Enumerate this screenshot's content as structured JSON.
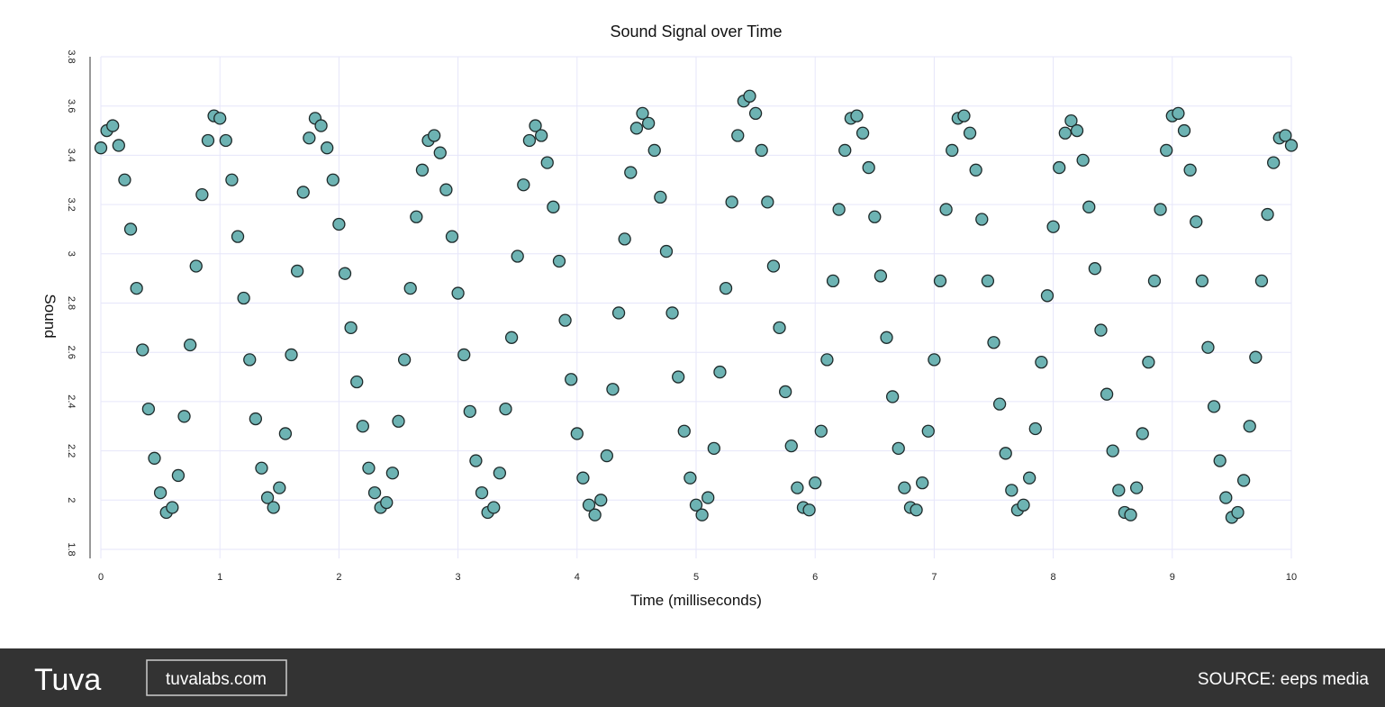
{
  "chart_data": {
    "type": "scatter",
    "title": "Sound Signal over Time",
    "x_label": "Time (milliseconds)",
    "y_label": "Sound",
    "color": "#6db3b3",
    "grid": true,
    "xlim": [
      0,
      10
    ],
    "xticks": [
      0,
      1,
      2,
      3,
      4,
      5,
      6,
      7,
      8,
      9,
      10
    ],
    "ylim": [
      1.8,
      3.8
    ],
    "yticks": [
      1.8,
      2,
      2.2,
      2.4,
      2.6,
      2.8,
      3,
      3.2,
      3.4,
      3.6,
      3.8
    ],
    "x": [
      0,
      0.05,
      0.1,
      0.15,
      0.2,
      0.25,
      0.3,
      0.35,
      0.4,
      0.45,
      0.5,
      0.55,
      0.6,
      0.65,
      0.7,
      0.75,
      0.8,
      0.85,
      0.9,
      0.95,
      1,
      1.05,
      1.1,
      1.15,
      1.2,
      1.25,
      1.3,
      1.35,
      1.4,
      1.45,
      1.5,
      1.55,
      1.6,
      1.65,
      1.7,
      1.75,
      1.8,
      1.85,
      1.9,
      1.95,
      2,
      2.05,
      2.1,
      2.15,
      2.2,
      2.25,
      2.3,
      2.35,
      2.4,
      2.45,
      2.5,
      2.55,
      2.6,
      2.65,
      2.7,
      2.75,
      2.8,
      2.85,
      2.9,
      2.95,
      3,
      3.05,
      3.1,
      3.15,
      3.2,
      3.25,
      3.3,
      3.35,
      3.4,
      3.45,
      3.5,
      3.55,
      3.6,
      3.65,
      3.7,
      3.75,
      3.8,
      3.85,
      3.9,
      3.95,
      4,
      4.05,
      4.1,
      4.15,
      4.2,
      4.25,
      4.3,
      4.35,
      4.4,
      4.45,
      4.5,
      4.55,
      4.6,
      4.65,
      4.7,
      4.75,
      4.8,
      4.85,
      4.9,
      4.95,
      5,
      5.05,
      5.1,
      5.15,
      5.2,
      5.25,
      5.3,
      5.35,
      5.4,
      5.45,
      5.5,
      5.55,
      5.6,
      5.65,
      5.7,
      5.75,
      5.8,
      5.85,
      5.9,
      5.95,
      6,
      6.05,
      6.1,
      6.15,
      6.2,
      6.25,
      6.3,
      6.35,
      6.4,
      6.45,
      6.5,
      6.55,
      6.6,
      6.65,
      6.7,
      6.75,
      6.8,
      6.85,
      6.9,
      6.95,
      7,
      7.05,
      7.1,
      7.15,
      7.2,
      7.25,
      7.3,
      7.35,
      7.4,
      7.45,
      7.5,
      7.55,
      7.6,
      7.65,
      7.7,
      7.75,
      7.8,
      7.85,
      7.9,
      7.95,
      8,
      8.05,
      8.1,
      8.15,
      8.2,
      8.25,
      8.3,
      8.35,
      8.4,
      8.45,
      8.5,
      8.55,
      8.6,
      8.65,
      8.7,
      8.75,
      8.8,
      8.85,
      8.9,
      8.95,
      9,
      9.05,
      9.1,
      9.15,
      9.2,
      9.25,
      9.3,
      9.35,
      9.4,
      9.45,
      9.5,
      9.55,
      9.6,
      9.65,
      9.7,
      9.75,
      9.8,
      9.85,
      9.9,
      9.95,
      10
    ],
    "values": [
      3.43,
      3.5,
      3.52,
      3.44,
      3.3,
      3.1,
      2.86,
      2.61,
      2.37,
      2.17,
      2.03,
      1.95,
      1.97,
      2.1,
      2.34,
      2.63,
      2.95,
      3.24,
      3.46,
      3.56,
      3.55,
      3.46,
      3.3,
      3.07,
      2.82,
      2.57,
      2.33,
      2.13,
      2.01,
      1.97,
      2.05,
      2.27,
      2.59,
      2.93,
      3.25,
      3.47,
      3.55,
      3.52,
      3.43,
      3.3,
      3.12,
      2.92,
      2.7,
      2.48,
      2.3,
      2.13,
      2.03,
      1.97,
      1.99,
      2.11,
      2.32,
      2.57,
      2.86,
      3.15,
      3.34,
      3.46,
      3.48,
      3.41,
      3.26,
      3.07,
      2.84,
      2.59,
      2.36,
      2.16,
      2.03,
      1.95,
      1.97,
      2.11,
      2.37,
      2.66,
      2.99,
      3.28,
      3.46,
      3.52,
      3.48,
      3.37,
      3.19,
      2.97,
      2.73,
      2.49,
      2.27,
      2.09,
      1.98,
      1.94,
      2,
      2.18,
      2.45,
      2.76,
      3.06,
      3.33,
      3.51,
      3.57,
      3.53,
      3.42,
      3.23,
      3.01,
      2.76,
      2.5,
      2.28,
      2.09,
      1.98,
      1.94,
      2.01,
      2.21,
      2.52,
      2.86,
      3.21,
      3.48,
      3.62,
      3.64,
      3.57,
      3.42,
      3.21,
      2.95,
      2.7,
      2.44,
      2.22,
      2.05,
      1.97,
      1.96,
      2.07,
      2.28,
      2.57,
      2.89,
      3.18,
      3.42,
      3.55,
      3.56,
      3.49,
      3.35,
      3.15,
      2.91,
      2.66,
      2.42,
      2.21,
      2.05,
      1.97,
      1.96,
      2.07,
      2.28,
      2.57,
      2.89,
      3.18,
      3.42,
      3.55,
      3.56,
      3.49,
      3.34,
      3.14,
      2.89,
      2.64,
      2.39,
      2.19,
      2.04,
      1.96,
      1.98,
      2.09,
      2.29,
      2.56,
      2.83,
      3.11,
      3.35,
      3.49,
      3.54,
      3.5,
      3.38,
      3.19,
      2.94,
      2.69,
      2.43,
      2.2,
      2.04,
      1.95,
      1.94,
      2.05,
      2.27,
      2.56,
      2.89,
      3.18,
      3.42,
      3.56,
      3.57,
      3.5,
      3.34,
      3.13,
      2.89,
      2.62,
      2.38,
      2.16,
      2.01,
      1.93,
      1.95,
      2.08,
      2.3,
      2.58,
      2.89,
      3.16,
      3.37,
      3.47,
      3.48,
      3.44
    ]
  },
  "footer": {
    "logo": "Tuva",
    "site": "tuvalabs.com",
    "source": "SOURCE: eeps media"
  }
}
